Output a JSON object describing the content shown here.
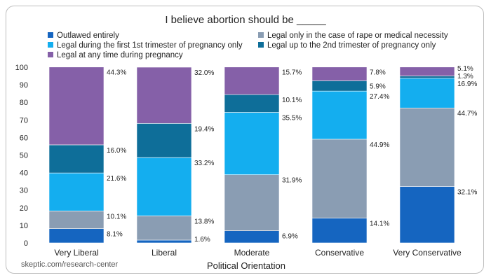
{
  "chart_data": {
    "type": "bar",
    "stacked": true,
    "title": "I believe abortion should be _____",
    "xlabel": "Political Orientation",
    "ylabel": "",
    "ylim": [
      0,
      100
    ],
    "yticks": [
      0,
      10,
      20,
      30,
      40,
      50,
      60,
      70,
      80,
      90,
      100
    ],
    "categories": [
      "Very Liberal",
      "Liberal",
      "Moderate",
      "Conservative",
      "Very Conservative"
    ],
    "series": [
      {
        "name": "Outlawed entirely",
        "color": "#1565c0",
        "values": [
          8.1,
          1.6,
          6.9,
          14.1,
          32.1
        ]
      },
      {
        "name": "Legal only in the case of rape or medical necessity",
        "color": "#8a9db3",
        "values": [
          10.1,
          13.8,
          31.9,
          44.9,
          44.7
        ]
      },
      {
        "name": "Legal during the first 1st trimester of pregnancy only",
        "color": "#14aeef",
        "values": [
          21.6,
          33.2,
          35.5,
          27.4,
          16.9
        ]
      },
      {
        "name": "Legal up to the 2nd trimester of pregnancy only",
        "color": "#0e6e99",
        "values": [
          16.0,
          19.4,
          10.1,
          5.9,
          1.3
        ]
      },
      {
        "name": "Legal at any time during pregnancy",
        "color": "#8560a8",
        "values": [
          44.3,
          32.0,
          15.7,
          7.8,
          5.1
        ]
      }
    ],
    "data_labels": [
      [
        "8.1%",
        "10.1%",
        "21.6%",
        "16.0%",
        "44.3%"
      ],
      [
        "1.6%",
        "13.8%",
        "33.2%",
        "19.4%",
        "32.0%"
      ],
      [
        "6.9%",
        "31.9%",
        "35.5%",
        "10.1%",
        "15.7%"
      ],
      [
        "14.1%",
        "44.9%",
        "27.4%",
        "5.9%",
        "7.8%"
      ],
      [
        "32.1%",
        "44.7%",
        "16.9%",
        "1.3%",
        "5.1%"
      ]
    ],
    "legend_position": "top",
    "grid": false
  },
  "source": "skeptic.com/research-center"
}
